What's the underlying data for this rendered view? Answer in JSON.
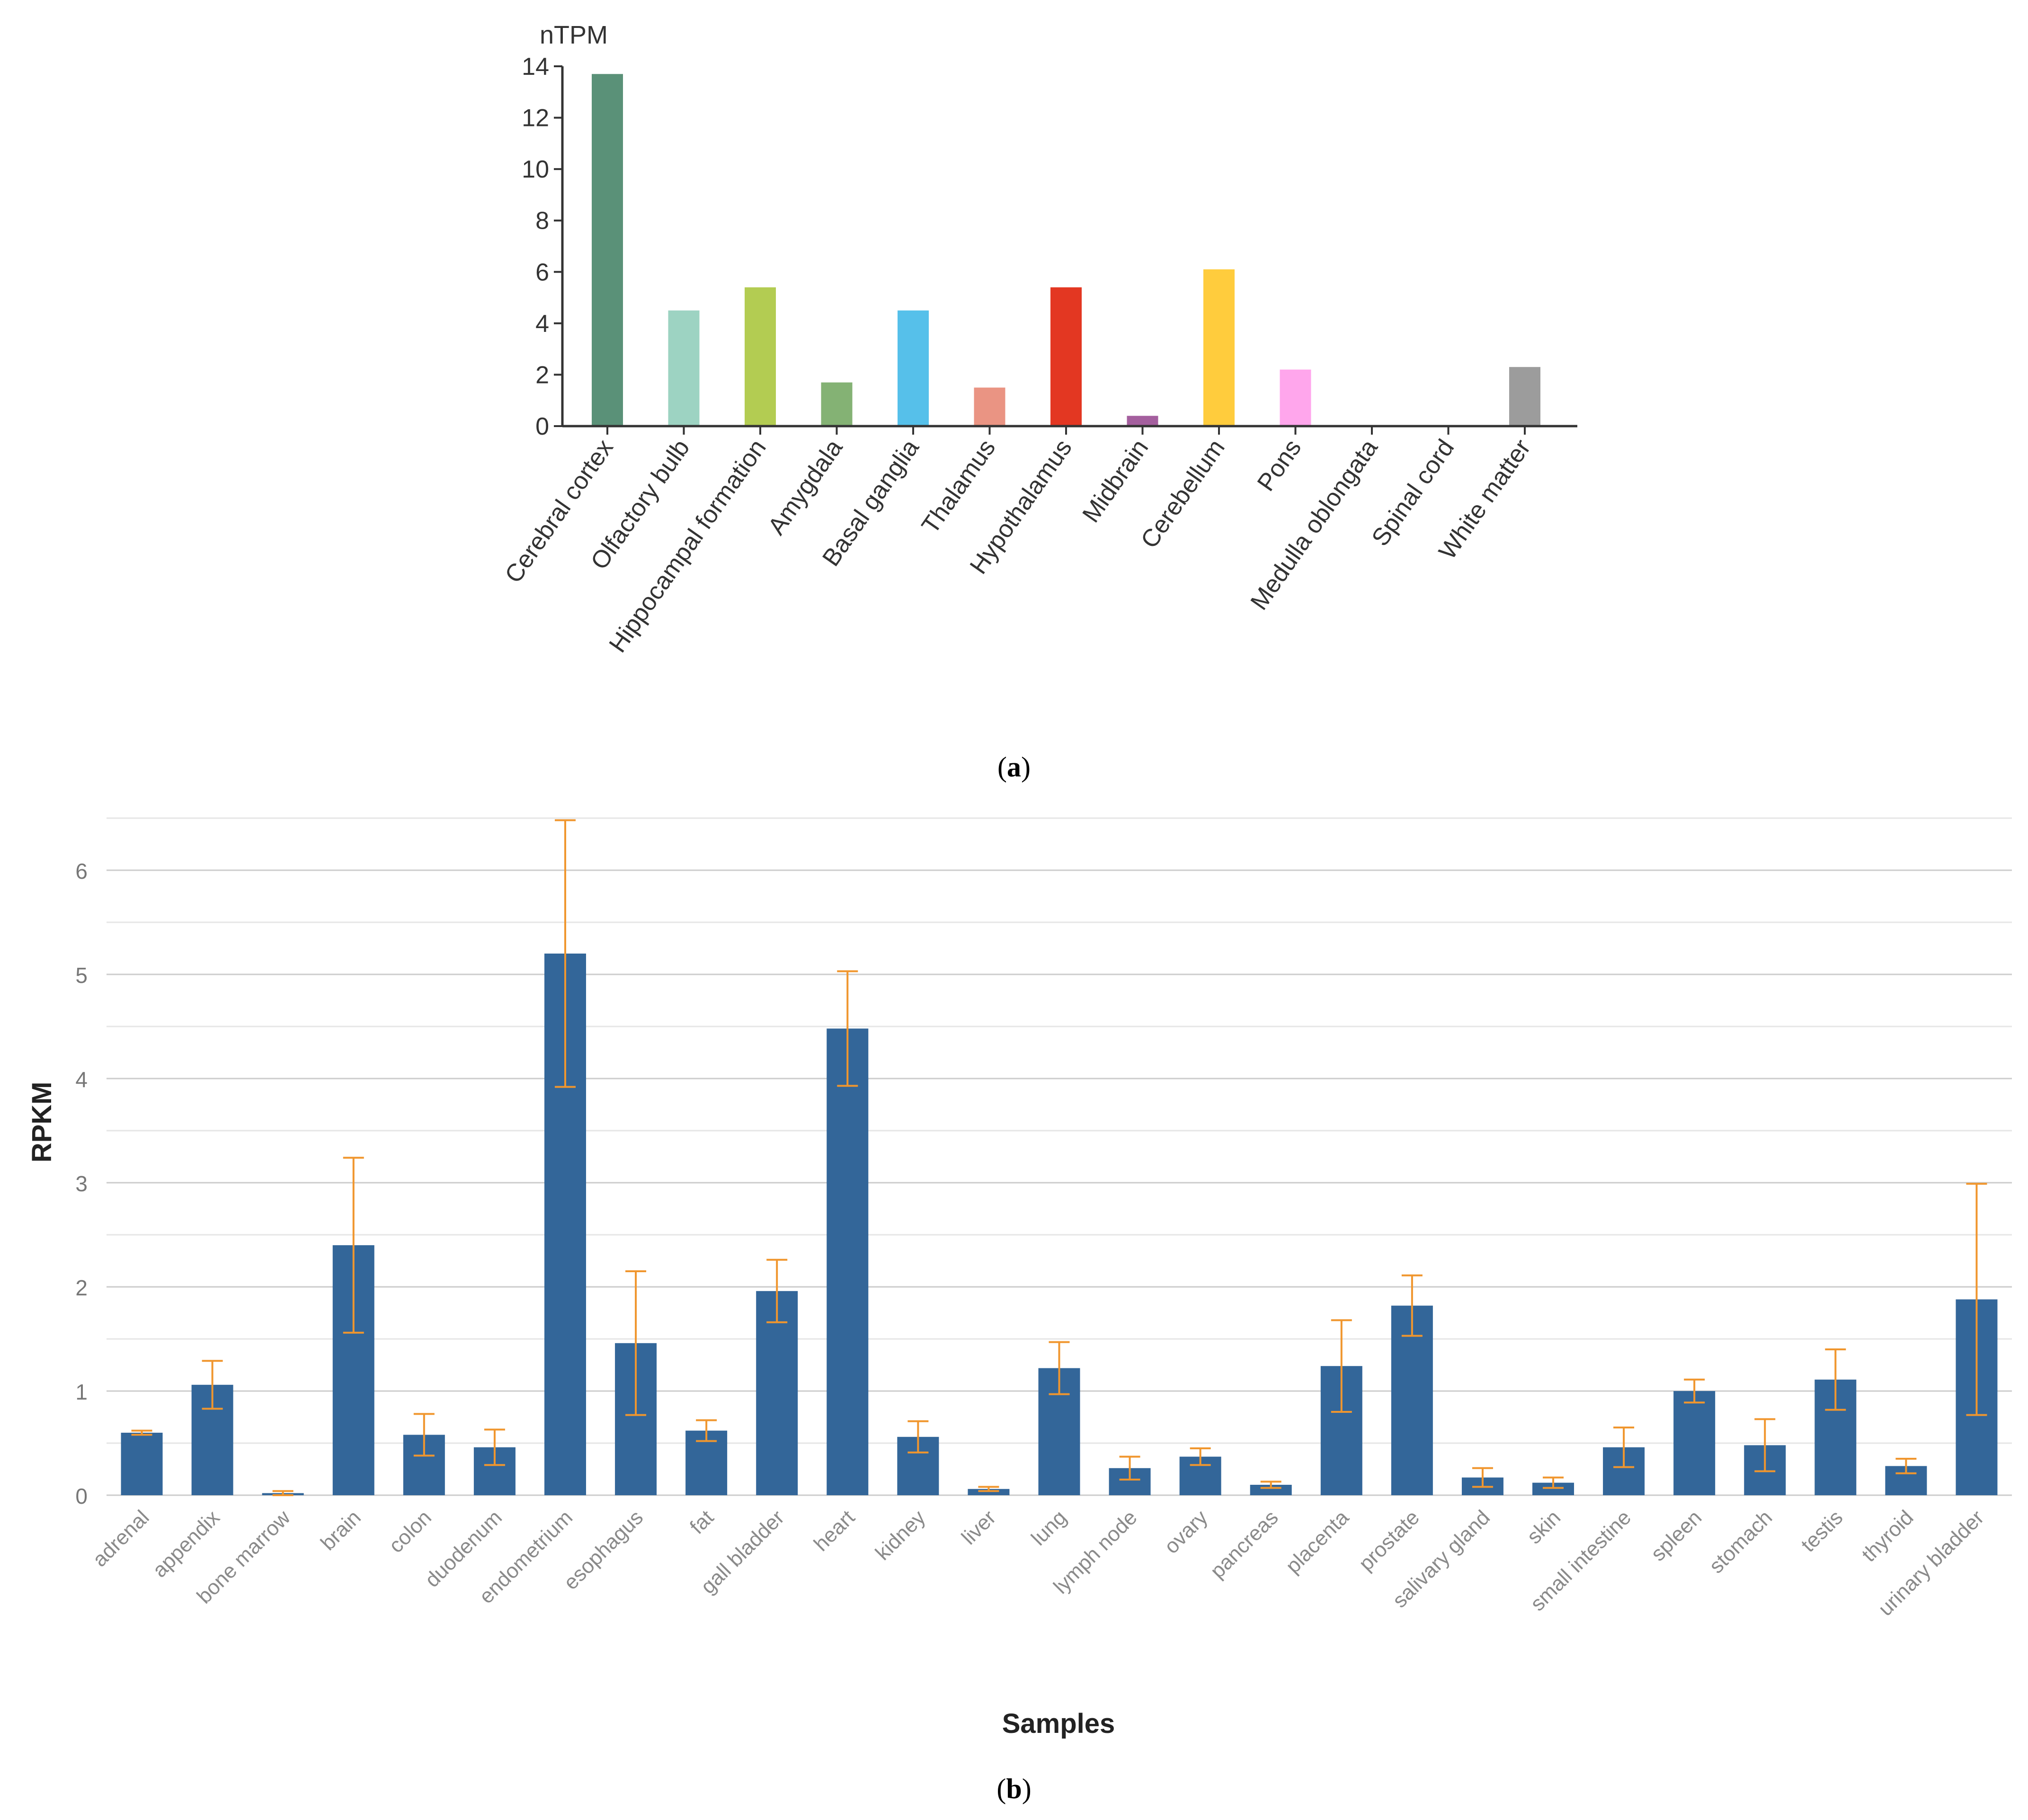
{
  "panel_labels": {
    "a_open": "(",
    "a_letter": "a",
    "a_close": ")",
    "b_open": "(",
    "b_letter": "b",
    "b_close": ")"
  },
  "chart_data": [
    {
      "id": "a",
      "type": "bar",
      "title": "",
      "ylabel": "nTPM",
      "xlabel": "",
      "ylim": [
        0,
        14
      ],
      "yticks": [
        0,
        2,
        4,
        6,
        8,
        10,
        12,
        14
      ],
      "grid": false,
      "categories": [
        "Cerebral cortex",
        "Olfactory bulb",
        "Hippocampal formation",
        "Amygdala",
        "Basal ganglia",
        "Thalamus",
        "Hypothalamus",
        "Midbrain",
        "Cerebellum",
        "Pons",
        "Medulla oblongata",
        "Spinal cord",
        "White matter"
      ],
      "values": [
        13.7,
        4.5,
        5.4,
        1.7,
        4.5,
        1.5,
        5.4,
        0.4,
        6.1,
        2.2,
        0,
        0,
        2.3
      ],
      "colors": [
        "#5a9178",
        "#9dd3c2",
        "#b3cc52",
        "#84b274",
        "#56c0ea",
        "#ea9483",
        "#e33722",
        "#a45f9e",
        "#ffcc3d",
        "#ffa6ec",
        "#ffffff",
        "#ffffff",
        "#9c9c9c"
      ]
    },
    {
      "id": "b",
      "type": "bar",
      "title": "",
      "ylabel": "RPKM",
      "xlabel": "Samples",
      "ylim": [
        0,
        6.5
      ],
      "yticks": [
        0,
        1,
        2,
        3,
        4,
        5,
        6
      ],
      "grid": true,
      "categories": [
        "adrenal",
        "appendix",
        "bone marrow",
        "brain",
        "colon",
        "duodenum",
        "endometrium",
        "esophagus",
        "fat",
        "gall bladder",
        "heart",
        "kidney",
        "liver",
        "lung",
        "lymph node",
        "ovary",
        "pancreas",
        "placenta",
        "prostate",
        "salivary gland",
        "skin",
        "small intestine",
        "spleen",
        "stomach",
        "testis",
        "thyroid",
        "urinary bladder"
      ],
      "values": [
        0.6,
        1.06,
        0.02,
        2.4,
        0.58,
        0.46,
        5.2,
        1.46,
        0.62,
        1.96,
        4.48,
        0.56,
        0.06,
        1.22,
        0.26,
        0.37,
        0.1,
        1.24,
        1.82,
        0.17,
        0.12,
        0.46,
        1.0,
        0.48,
        1.11,
        0.28,
        1.88
      ],
      "errors": [
        0.02,
        0.23,
        0.02,
        0.84,
        0.2,
        0.17,
        1.28,
        0.69,
        0.1,
        0.3,
        0.55,
        0.15,
        0.02,
        0.25,
        0.11,
        0.08,
        0.03,
        0.44,
        0.29,
        0.09,
        0.05,
        0.19,
        0.11,
        0.25,
        0.29,
        0.07,
        1.11
      ],
      "bar_color": "#336699",
      "error_color": "#f0962e",
      "grid_color": "#dcdcdc"
    }
  ]
}
